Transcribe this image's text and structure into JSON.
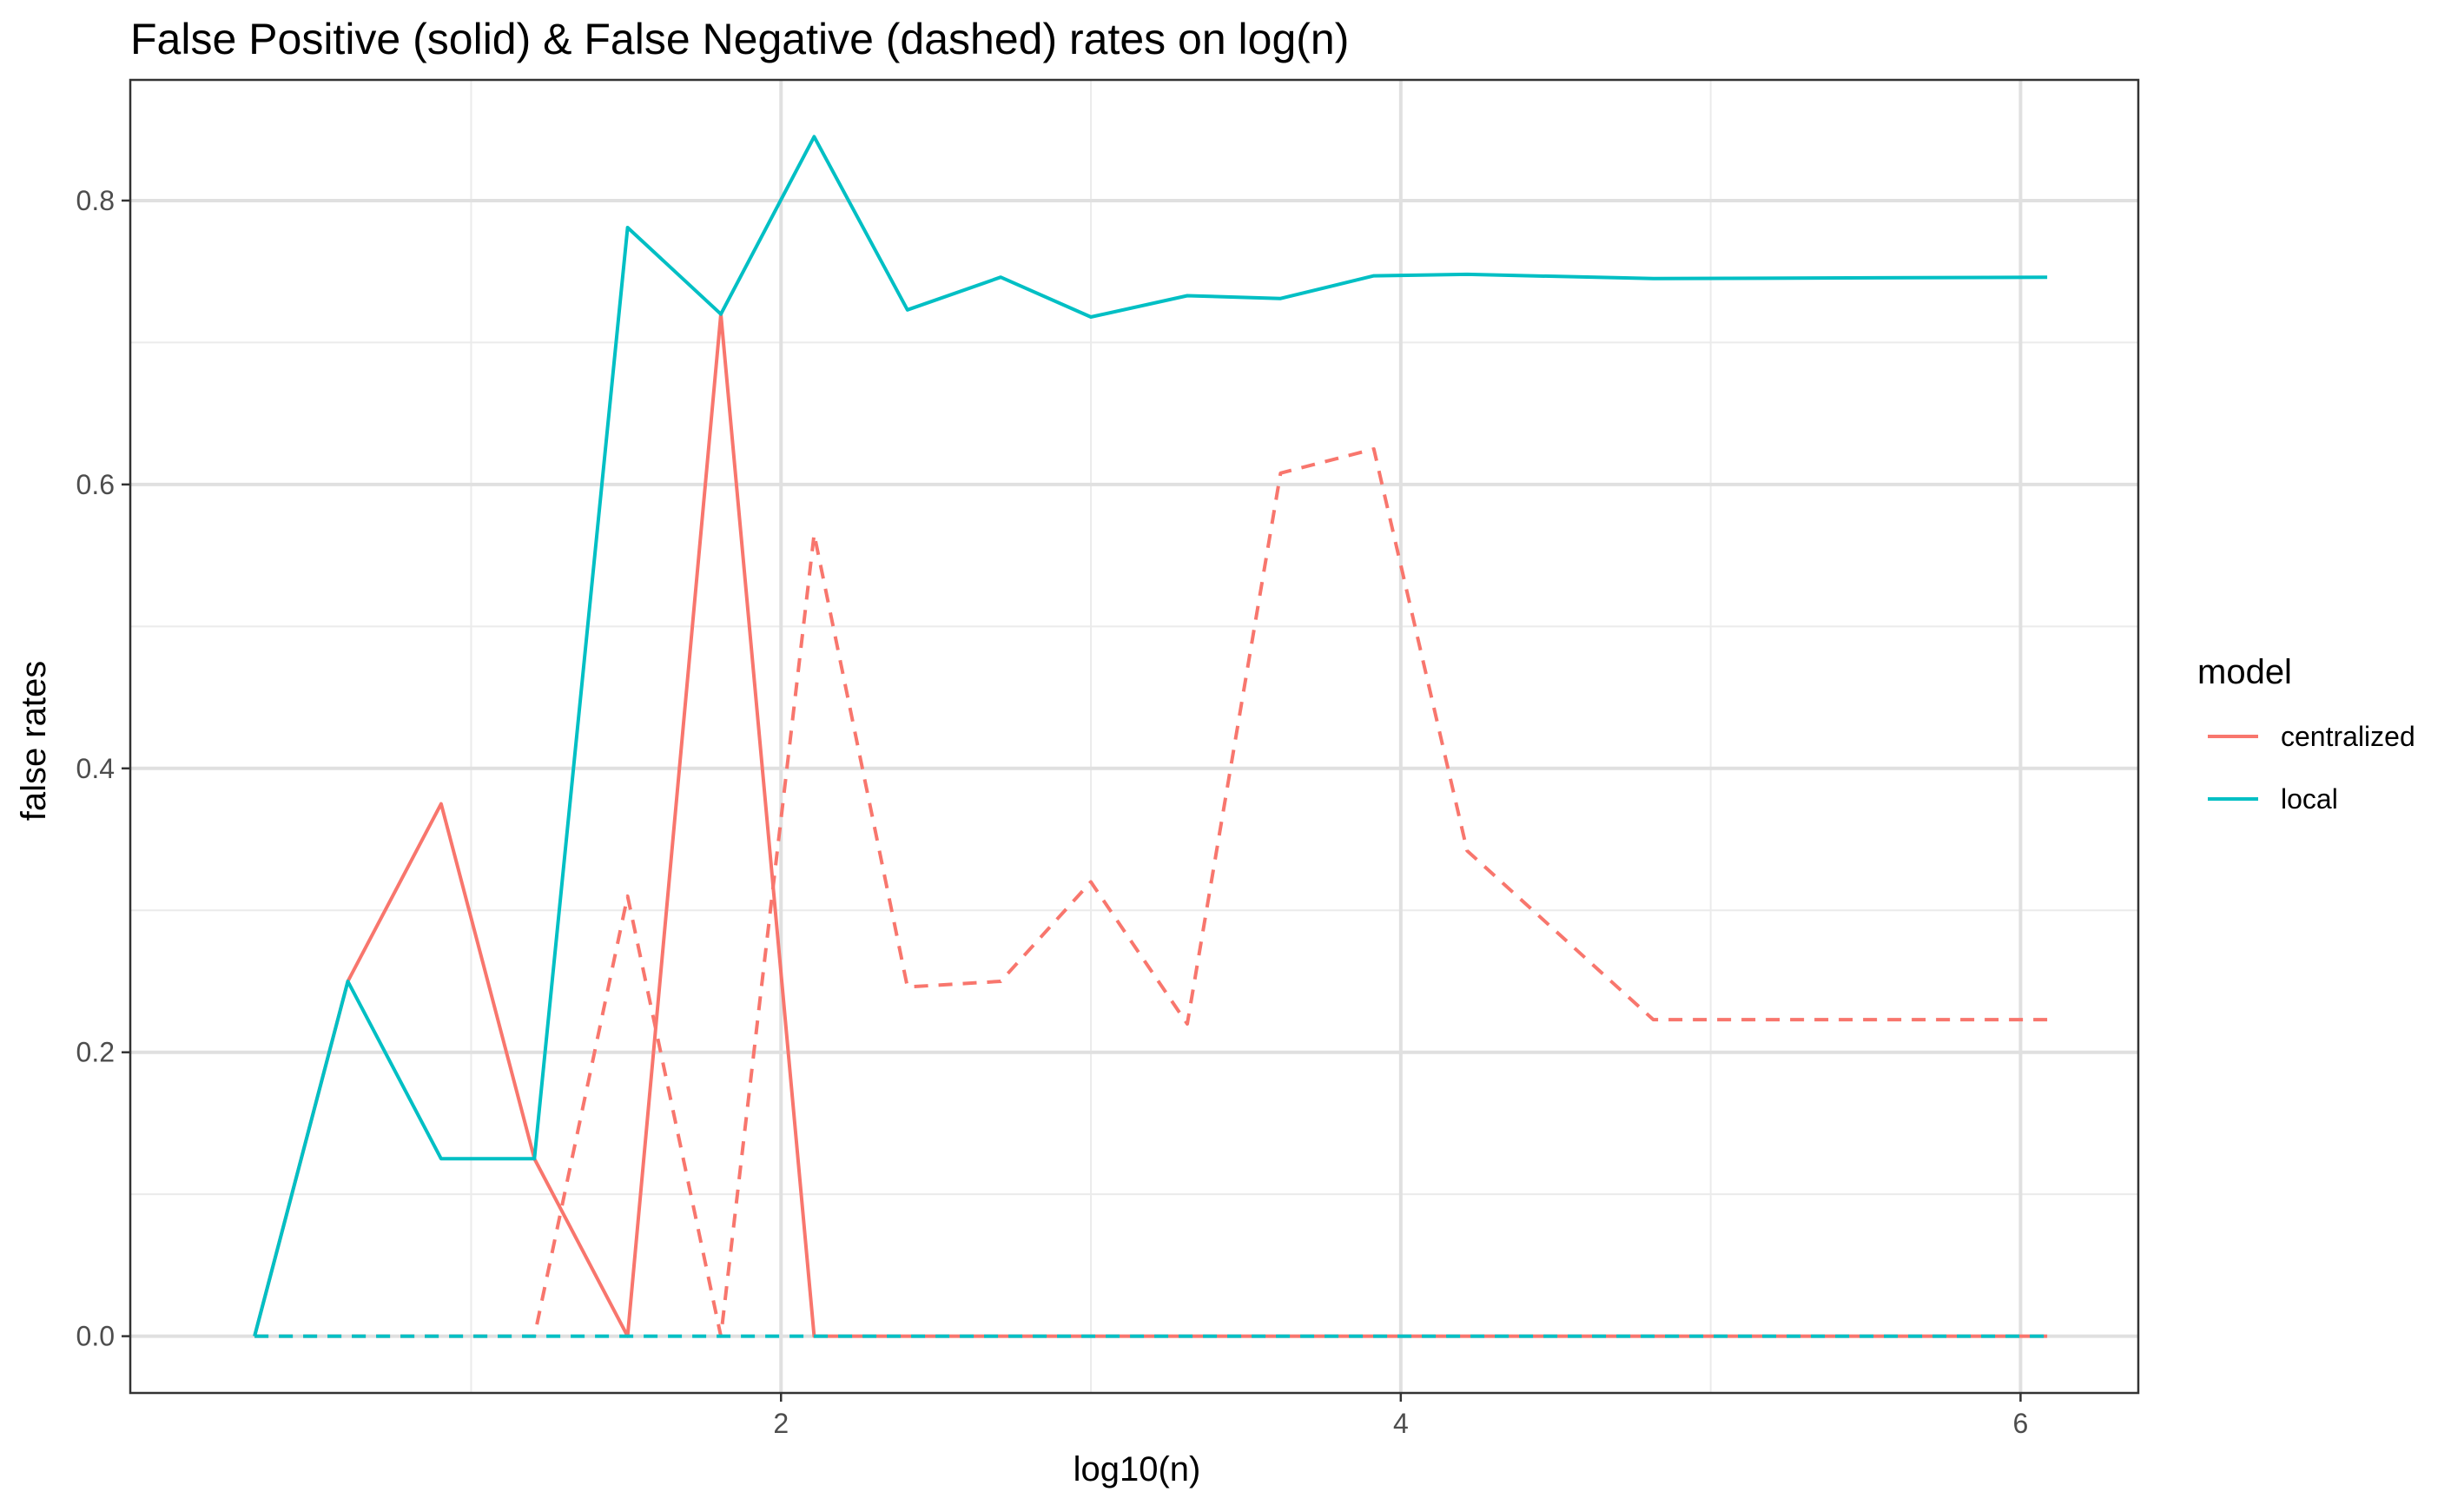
{
  "chart_data": {
    "type": "line",
    "title": "False Positive (solid) & False Negative (dashed) rates on log(n)",
    "xlabel": "log10(n)",
    "ylabel": "false rates",
    "xlim": [
      -0.1,
      6.38
    ],
    "ylim": [
      -0.04,
      0.885
    ],
    "x_ticks": [
      2,
      4,
      6
    ],
    "x_minor_ticks": [
      1,
      3,
      5
    ],
    "y_ticks": [
      0.0,
      0.2,
      0.4,
      0.6,
      0.8
    ],
    "y_minor_ticks": [
      0.1,
      0.3,
      0.5,
      0.7
    ],
    "x_tick_labels": [
      "2",
      "4",
      "6"
    ],
    "y_tick_labels": [
      "0.0",
      "0.2",
      "0.4",
      "0.6",
      "0.8"
    ],
    "grid": true,
    "legend": {
      "title": "model",
      "placement": "right",
      "entries": [
        {
          "label": "centralized",
          "color": "#F8766D"
        },
        {
          "label": "local",
          "color": "#00BFC4"
        }
      ]
    },
    "x": [
      0.301,
      0.602,
      0.903,
      1.204,
      1.505,
      1.806,
      2.107,
      2.408,
      2.709,
      3.0,
      3.311,
      3.612,
      3.913,
      4.214,
      4.815,
      6.086
    ],
    "series": [
      {
        "name": "centralized",
        "linetype": "solid",
        "color": "#F8766D",
        "values": [
          0.0,
          0.25,
          0.375,
          0.125,
          0.0,
          0.72,
          0.0,
          0.0,
          0.0,
          0.0,
          0.0,
          0.0,
          0.0,
          0.0,
          0.0,
          0.0
        ]
      },
      {
        "name": "centralized",
        "linetype": "dashed",
        "color": "#F8766D",
        "values": [
          0.0,
          0.0,
          0.0,
          0.0,
          0.31,
          0.0,
          0.565,
          0.246,
          0.25,
          0.32,
          0.22,
          0.608,
          0.625,
          0.342,
          0.223,
          0.223
        ]
      },
      {
        "name": "local",
        "linetype": "solid",
        "color": "#00BFC4",
        "values": [
          0.0,
          0.25,
          0.125,
          0.125,
          0.781,
          0.72,
          0.845,
          0.723,
          0.746,
          0.718,
          0.733,
          0.731,
          0.747,
          0.748,
          0.745,
          0.746
        ]
      },
      {
        "name": "local",
        "linetype": "dashed",
        "color": "#00BFC4",
        "values": [
          0.0,
          0.0,
          0.0,
          0.0,
          0.0,
          0.0,
          0.0,
          0.0,
          0.0,
          0.0,
          0.0,
          0.0,
          0.0,
          0.0,
          0.0,
          0.0
        ]
      }
    ]
  }
}
